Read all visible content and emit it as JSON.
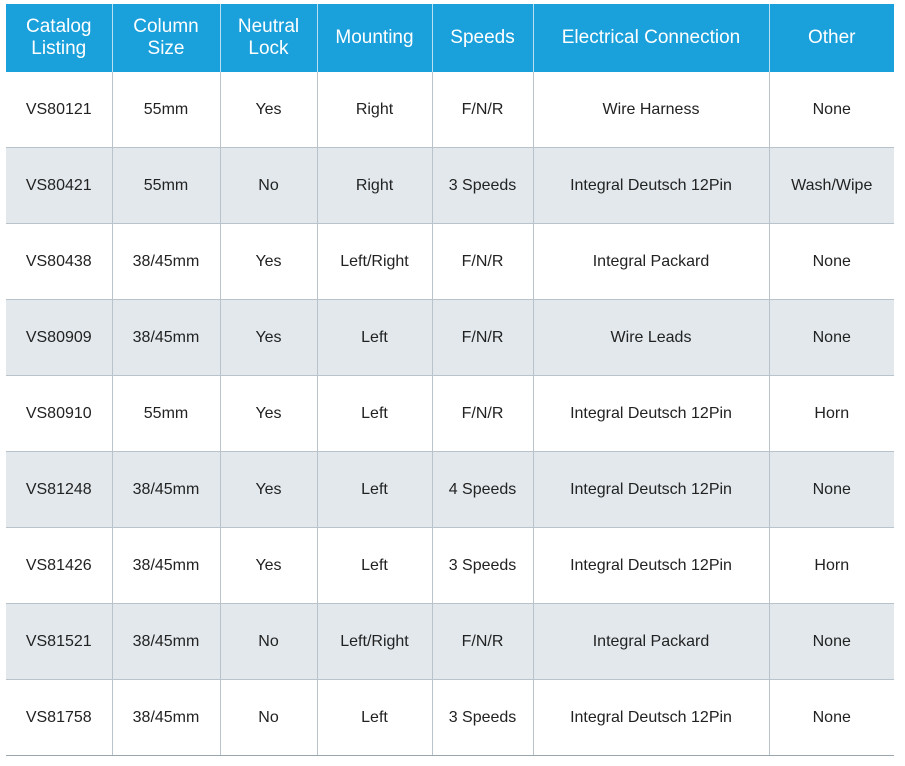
{
  "table": {
    "headers": [
      "Catalog Listing",
      "Column Size",
      "Neutral Lock",
      "Mounting",
      "Speeds",
      "Electrical Connection",
      "Other"
    ],
    "rows": [
      [
        "VS80121",
        "55mm",
        "Yes",
        "Right",
        "F/N/R",
        "Wire Harness",
        "None"
      ],
      [
        "VS80421",
        "55mm",
        "No",
        "Right",
        "3 Speeds",
        "Integral Deutsch 12Pin",
        "Wash/Wipe"
      ],
      [
        "VS80438",
        "38/45mm",
        "Yes",
        "Left/Right",
        "F/N/R",
        "Integral Packard",
        "None"
      ],
      [
        "VS80909",
        "38/45mm",
        "Yes",
        "Left",
        "F/N/R",
        "Wire Leads",
        "None"
      ],
      [
        "VS80910",
        "55mm",
        "Yes",
        "Left",
        "F/N/R",
        "Integral Deutsch 12Pin",
        "Horn"
      ],
      [
        "VS81248",
        "38/45mm",
        "Yes",
        "Left",
        "4 Speeds",
        "Integral Deutsch 12Pin",
        "None"
      ],
      [
        "VS81426",
        "38/45mm",
        "Yes",
        "Left",
        "3 Speeds",
        "Integral Deutsch 12Pin",
        "Horn"
      ],
      [
        "VS81521",
        "38/45mm",
        "No",
        "Left/Right",
        "F/N/R",
        "Integral Packard",
        "None"
      ],
      [
        "VS81758",
        "38/45mm",
        "No",
        "Left",
        "3 Speeds",
        "Integral Deutsch 12Pin",
        "None"
      ]
    ]
  },
  "colors": {
    "header_background": "#1aa0db",
    "header_text": "#ffffff",
    "alt_row_background": "#e2e8ec",
    "row_background": "#ffffff",
    "border": "#b9c3cb"
  }
}
